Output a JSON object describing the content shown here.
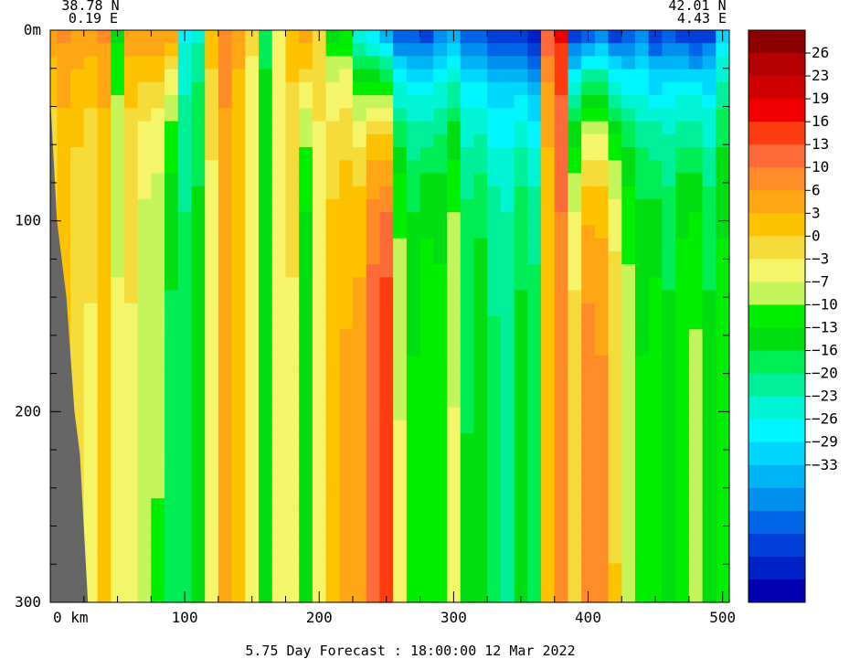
{
  "chart_data": {
    "type": "heatmap",
    "caption": "5.75 Day Forecast : 18:00:00  12 Mar 2022",
    "left_endpoint": {
      "lat": "38.78 N",
      "lon": "0.19 E"
    },
    "right_endpoint": {
      "lat": "42.01 N",
      "lon": "4.43 E"
    },
    "x_axis": {
      "unit": "km",
      "range": [
        0,
        505
      ],
      "ticks": [
        0,
        100,
        200,
        300,
        400,
        500
      ],
      "tick_labels": [
        "0  km",
        "100",
        "200",
        "300",
        "400",
        "500"
      ]
    },
    "y_axis": {
      "range": [
        0,
        300
      ],
      "inverted": true,
      "ticks": [
        0,
        100,
        200,
        300
      ],
      "tick_labels": [
        "0m",
        "100",
        "200",
        "300"
      ]
    },
    "colorbar": {
      "colors": [
        "#8b0000",
        "#b30000",
        "#d00000",
        "#ee0000",
        "#ff3b10",
        "#ff6a3a",
        "#ff8c26",
        "#ffa614",
        "#ffc200",
        "#f5dc3a",
        "#f5f56a",
        "#c4f55a",
        "#00ee00",
        "#00dd10",
        "#00ee55",
        "#00f09a",
        "#00f5d5",
        "#00f5ff",
        "#00d7ff",
        "#00b4f5",
        "#0090f0",
        "#0064e6",
        "#0040d9",
        "#0020c8",
        "#0000b3"
      ],
      "labels": [
        "26",
        "23",
        "19",
        "16",
        "13",
        "10",
        "6",
        "3",
        "0",
        "−3",
        "−7",
        "−10",
        "−13",
        "−16",
        "−20",
        "−23",
        "−26",
        "−29",
        "−33"
      ]
    },
    "columns": [
      {
        "x": 0,
        "surface": 10,
        "deep": 3
      },
      {
        "x": 10,
        "surface": 12,
        "deep": 6
      },
      {
        "x": 20,
        "surface": 11,
        "deep": 4
      },
      {
        "x": 30,
        "surface": 10,
        "deep": 3
      },
      {
        "x": 40,
        "surface": 12,
        "deep": 6
      },
      {
        "x": 50,
        "surface": -5,
        "deep": 1
      },
      {
        "x": 60,
        "surface": 10,
        "deep": 3
      },
      {
        "x": 70,
        "surface": 11,
        "deep": -1
      },
      {
        "x": 80,
        "surface": 12,
        "deep": -2
      },
      {
        "x": 90,
        "surface": 10,
        "deep": -8
      },
      {
        "x": 100,
        "surface": -16,
        "deep": -9
      },
      {
        "x": 110,
        "surface": -13,
        "deep": -6
      },
      {
        "x": 120,
        "surface": 8,
        "deep": 2
      },
      {
        "x": 130,
        "surface": 14,
        "deep": 9
      },
      {
        "x": 140,
        "surface": 10,
        "deep": 6
      },
      {
        "x": 150,
        "surface": 4,
        "deep": 1
      },
      {
        "x": 160,
        "surface": -8,
        "deep": -6
      },
      {
        "x": 170,
        "surface": 1,
        "deep": 1
      },
      {
        "x": 180,
        "surface": 8,
        "deep": 3
      },
      {
        "x": 190,
        "surface": 12,
        "deep": -7
      },
      {
        "x": 200,
        "surface": 6,
        "deep": 2
      },
      {
        "x": 210,
        "surface": -6,
        "deep": 8
      },
      {
        "x": 220,
        "surface": -5,
        "deep": 9
      },
      {
        "x": 230,
        "surface": -16,
        "deep": 10
      },
      {
        "x": 240,
        "surface": -20,
        "deep": 16
      },
      {
        "x": 250,
        "surface": -26,
        "deep": 19
      },
      {
        "x": 260,
        "surface": -30,
        "deep": 1
      },
      {
        "x": 270,
        "surface": -29,
        "deep": -4
      },
      {
        "x": 280,
        "surface": -31,
        "deep": -2
      },
      {
        "x": 290,
        "surface": -26,
        "deep": -3
      },
      {
        "x": 300,
        "surface": -24,
        "deep": 1
      },
      {
        "x": 310,
        "surface": -27,
        "deep": -7
      },
      {
        "x": 320,
        "surface": -29,
        "deep": -5
      },
      {
        "x": 330,
        "surface": -31,
        "deep": -9
      },
      {
        "x": 340,
        "surface": -30,
        "deep": -10
      },
      {
        "x": 350,
        "surface": -31,
        "deep": -6
      },
      {
        "x": 360,
        "surface": -35,
        "deep": -8
      },
      {
        "x": 370,
        "surface": 16,
        "deep": 6
      },
      {
        "x": 380,
        "surface": 20,
        "deep": 13
      },
      {
        "x": 390,
        "surface": -32,
        "deep": 5
      },
      {
        "x": 400,
        "surface": -29,
        "deep": 13
      },
      {
        "x": 410,
        "surface": -28,
        "deep": 12
      },
      {
        "x": 420,
        "surface": -31,
        "deep": 6
      },
      {
        "x": 430,
        "surface": -30,
        "deep": 0
      },
      {
        "x": 440,
        "surface": -27,
        "deep": -4
      },
      {
        "x": 450,
        "surface": -32,
        "deep": -3
      },
      {
        "x": 460,
        "surface": -29,
        "deep": -6
      },
      {
        "x": 470,
        "surface": -31,
        "deep": -2
      },
      {
        "x": 480,
        "surface": -33,
        "deep": -1
      },
      {
        "x": 490,
        "surface": -30,
        "deep": -6
      },
      {
        "x": 500,
        "surface": -20,
        "deep": -3
      }
    ],
    "land": [
      {
        "x": 0,
        "depth": 35
      },
      {
        "x": 5,
        "depth": 100
      },
      {
        "x": 12,
        "depth": 140
      },
      {
        "x": 18,
        "depth": 200
      },
      {
        "x": 22,
        "depth": 222
      },
      {
        "x": 28,
        "depth": 300
      }
    ]
  }
}
